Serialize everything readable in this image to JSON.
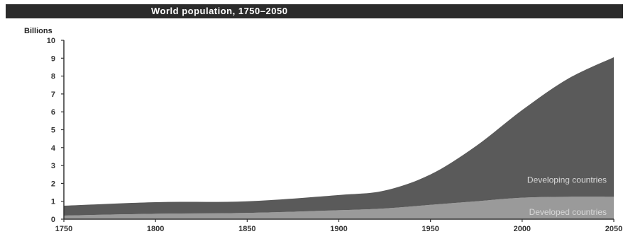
{
  "chart_data": {
    "type": "area",
    "title": "World population, 1750–2050",
    "ylabel": "Billions",
    "xlabel": "",
    "x": [
      1750,
      1800,
      1850,
      1900,
      1925,
      1950,
      1975,
      2000,
      2025,
      2050
    ],
    "xticks": [
      "1750",
      "1800",
      "1850",
      "1900",
      "1950",
      "2000",
      "2050"
    ],
    "yticks": [
      "0",
      "1",
      "2",
      "3",
      "4",
      "5",
      "6",
      "7",
      "8",
      "9",
      "10"
    ],
    "ylim": [
      0,
      10
    ],
    "xlim": [
      1750,
      2050
    ],
    "stacked": true,
    "series": [
      {
        "name": "Developed countries",
        "values": [
          0.2,
          0.3,
          0.35,
          0.5,
          0.6,
          0.8,
          1.0,
          1.2,
          1.25,
          1.25
        ],
        "color": "#9a9a9a"
      },
      {
        "name": "Developing countries",
        "values": [
          0.55,
          0.65,
          0.65,
          0.85,
          1.0,
          1.7,
          3.1,
          4.9,
          6.6,
          7.8
        ],
        "color": "#5a5a5a"
      }
    ],
    "grid": false,
    "legend": "inline labels inside areas, bottom-right"
  }
}
